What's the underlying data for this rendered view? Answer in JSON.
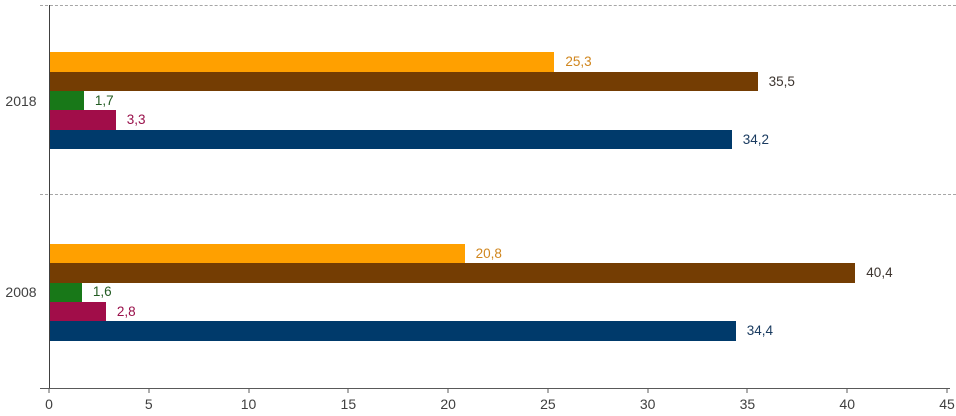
{
  "chart_data": {
    "type": "bar",
    "orientation": "horizontal",
    "title": "",
    "legend": "none",
    "decimal_separator": ",",
    "categories": [
      "2018",
      "2008"
    ],
    "series": [
      {
        "name": "orange",
        "color": "#FFA000",
        "label_color": "#D0861E",
        "values": [
          25.3,
          20.8
        ],
        "value_labels": [
          "25,3",
          "20,8"
        ]
      },
      {
        "name": "brown",
        "color": "#743D03",
        "label_color": "#3D3530",
        "values": [
          35.5,
          40.4
        ],
        "value_labels": [
          "35,5",
          "40,4"
        ]
      },
      {
        "name": "green",
        "color": "#187818",
        "label_color": "#235C23",
        "values": [
          1.7,
          1.6
        ],
        "value_labels": [
          "1,7",
          "1,6"
        ]
      },
      {
        "name": "maroon",
        "color": "#A10D49",
        "label_color": "#99104A",
        "values": [
          3.3,
          2.8
        ],
        "value_labels": [
          "3,3",
          "2,8"
        ]
      },
      {
        "name": "navy",
        "color": "#003A6B",
        "label_color": "#1A3B60",
        "values": [
          34.2,
          34.4
        ],
        "value_labels": [
          "34,2",
          "34,4"
        ]
      }
    ],
    "xlim": [
      0,
      45
    ],
    "x_ticks": [
      "0",
      "5",
      "10",
      "15",
      "20",
      "25",
      "30",
      "35",
      "40",
      "45"
    ],
    "gridlines": {
      "style": "dashed",
      "placement": "category-boundaries"
    }
  },
  "colors": {
    "axis": "#595959",
    "y_axis": "#404040",
    "grid": "#A6A6A6",
    "text": "#404040",
    "background": "#FFFFFF"
  }
}
